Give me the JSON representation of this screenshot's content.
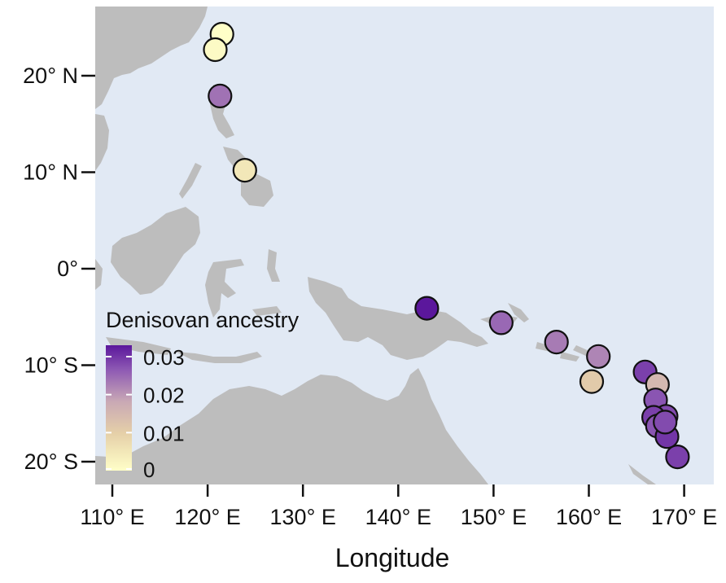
{
  "chart_data": {
    "type": "scatter",
    "xlabel": "Longitude",
    "ylabel": "",
    "xlim": [
      108,
      173
    ],
    "ylim": [
      -22.5,
      27.5
    ],
    "x_ticks": [
      {
        "value": 110,
        "label": "110° E"
      },
      {
        "value": 120,
        "label": "120° E"
      },
      {
        "value": 130,
        "label": "130° E"
      },
      {
        "value": 140,
        "label": "140° E"
      },
      {
        "value": 150,
        "label": "150° E"
      },
      {
        "value": 160,
        "label": "160° E"
      },
      {
        "value": 170,
        "label": "170° E"
      }
    ],
    "y_ticks": [
      {
        "value": 20,
        "label": "20° N"
      },
      {
        "value": 10,
        "label": "10° N"
      },
      {
        "value": 0,
        "label": "0°"
      },
      {
        "value": -10,
        "label": "10° S"
      },
      {
        "value": -20,
        "label": "20° S"
      }
    ],
    "legend": {
      "title": "Denisovan ancestry",
      "position": "bottom-left",
      "range": [
        0,
        0.033
      ],
      "labels": [
        {
          "value": 0.03,
          "label": "0.03"
        },
        {
          "value": 0.02,
          "label": "0.02"
        },
        {
          "value": 0.01,
          "label": "0.01"
        },
        {
          "value": 0,
          "label": "0"
        }
      ]
    },
    "colors": {
      "ocean": "#e1e9f4",
      "land": "#bdbdbd",
      "scale_low": "#ffffc8",
      "scale_mid": "#c9a9b5",
      "scale_high": "#5b179c"
    },
    "points": [
      {
        "lon": 121.5,
        "lat": 24.3,
        "ancestry": 0.0
      },
      {
        "lon": 120.8,
        "lat": 22.7,
        "ancestry": 0.001
      },
      {
        "lon": 121.3,
        "lat": 17.9,
        "ancestry": 0.024
      },
      {
        "lon": 123.9,
        "lat": 10.2,
        "ancestry": 0.005
      },
      {
        "lon": 143.0,
        "lat": -4.1,
        "ancestry": 0.033
      },
      {
        "lon": 150.8,
        "lat": -5.6,
        "ancestry": 0.025
      },
      {
        "lon": 156.6,
        "lat": -7.6,
        "ancestry": 0.023
      },
      {
        "lon": 161.0,
        "lat": -9.1,
        "ancestry": 0.022
      },
      {
        "lon": 160.3,
        "lat": -11.7,
        "ancestry": 0.011
      },
      {
        "lon": 165.9,
        "lat": -10.7,
        "ancestry": 0.029
      },
      {
        "lon": 167.2,
        "lat": -12.0,
        "ancestry": 0.015
      },
      {
        "lon": 167.0,
        "lat": -13.6,
        "ancestry": 0.027
      },
      {
        "lon": 168.1,
        "lat": -15.3,
        "ancestry": 0.028
      },
      {
        "lon": 166.8,
        "lat": -15.4,
        "ancestry": 0.029
      },
      {
        "lon": 167.2,
        "lat": -16.3,
        "ancestry": 0.027
      },
      {
        "lon": 168.2,
        "lat": -17.4,
        "ancestry": 0.03
      },
      {
        "lon": 168.0,
        "lat": -15.9,
        "ancestry": 0.028
      },
      {
        "lon": 169.3,
        "lat": -19.5,
        "ancestry": 0.029
      }
    ]
  }
}
